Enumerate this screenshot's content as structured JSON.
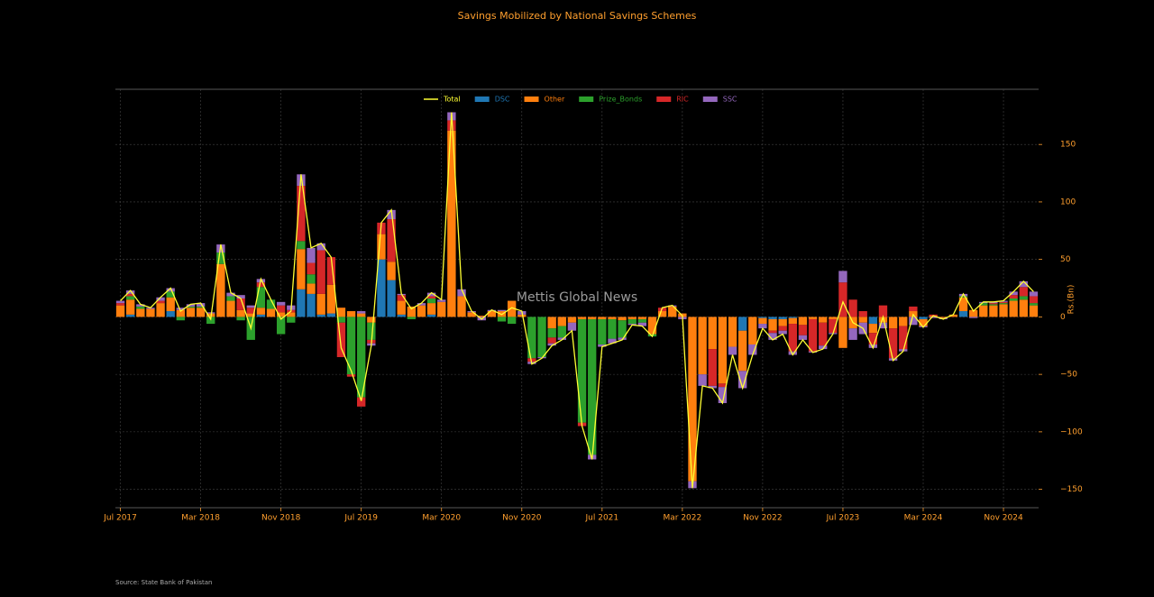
{
  "chart_data": {
    "type": "bar",
    "stacked": true,
    "title": "Savings Mobilized by National Savings Schemes",
    "y_label": "Rs.(Bn)",
    "watermark": "Mettis Global News",
    "source": "Source: State Bank of Pakistan",
    "categories": [
      "Jul 2017",
      null,
      null,
      null,
      null,
      null,
      null,
      null,
      "Mar 2018",
      null,
      null,
      null,
      null,
      null,
      null,
      null,
      "Nov 2018",
      null,
      null,
      null,
      null,
      null,
      null,
      null,
      "Jul 2019",
      null,
      null,
      null,
      null,
      null,
      null,
      null,
      "Mar 2020",
      null,
      null,
      null,
      null,
      null,
      null,
      null,
      "Nov 2020",
      null,
      null,
      null,
      null,
      null,
      null,
      null,
      "Jul 2021",
      null,
      null,
      null,
      null,
      null,
      null,
      null,
      "Mar 2022",
      null,
      null,
      null,
      null,
      null,
      null,
      null,
      "Nov 2022",
      null,
      null,
      null,
      null,
      null,
      null,
      null,
      "Jul 2023",
      null,
      null,
      null,
      null,
      null,
      null,
      null,
      "Mar 2024",
      null,
      null,
      null,
      null,
      null,
      null,
      null,
      "Nov 2024",
      null,
      null,
      null
    ],
    "series": [
      {
        "name": "Total",
        "type": "line",
        "color": "#ffff33",
        "values": [
          14,
          23,
          11,
          8,
          17,
          25,
          5,
          11,
          12,
          -2,
          63,
          21,
          16,
          -10,
          33,
          15,
          -2,
          5,
          124,
          60,
          64,
          52,
          -27,
          -47,
          -73,
          -25,
          82,
          93,
          20,
          7,
          12,
          21,
          15,
          178,
          24,
          5,
          -2,
          6,
          2,
          8,
          5,
          -41,
          -36,
          -25,
          -20,
          -12,
          -95,
          -124,
          -26,
          -23,
          -20,
          -7,
          -8,
          -17,
          8,
          10,
          1,
          -149,
          -60,
          -62,
          -75,
          -33,
          -62,
          -33,
          -10,
          -20,
          -15,
          -33,
          -20,
          -31,
          -28,
          -15,
          13,
          -5,
          -10,
          -27,
          0,
          -38,
          -30,
          2,
          -9,
          1,
          -2,
          2,
          20,
          5,
          13,
          13,
          14,
          22,
          31,
          22
        ]
      },
      {
        "name": "DSC",
        "color": "#1f77b4",
        "values": [
          0,
          2,
          0,
          0,
          0,
          5,
          0,
          0,
          0,
          0,
          0,
          0,
          0,
          0,
          2,
          0,
          0,
          0,
          24,
          20,
          2,
          3,
          0,
          0,
          0,
          0,
          50,
          32,
          2,
          0,
          0,
          2,
          0,
          0,
          0,
          0,
          0,
          0,
          0,
          0,
          0,
          0,
          0,
          0,
          0,
          0,
          0,
          0,
          0,
          0,
          0,
          0,
          0,
          0,
          0,
          0,
          0,
          0,
          0,
          0,
          0,
          0,
          -12,
          0,
          -1,
          -2,
          -2,
          -1,
          0,
          0,
          0,
          0,
          0,
          0,
          0,
          -6,
          0,
          0,
          0,
          0,
          -2,
          0,
          0,
          0,
          5,
          0,
          0,
          0,
          0,
          0,
          0,
          0
        ]
      },
      {
        "name": "Other",
        "color": "#ff7f0e",
        "values": [
          10,
          13,
          7,
          7,
          12,
          12,
          6,
          8,
          8,
          3,
          46,
          14,
          6,
          3,
          6,
          7,
          4,
          4,
          35,
          9,
          18,
          25,
          8,
          5,
          3,
          -5,
          22,
          16,
          12,
          9,
          10,
          10,
          13,
          162,
          18,
          4,
          1,
          5,
          5,
          14,
          2,
          0,
          0,
          -10,
          -8,
          -5,
          -2,
          -2,
          -2,
          -2,
          -3,
          -2,
          -2,
          -15,
          5,
          9,
          3,
          -143,
          -50,
          -28,
          -58,
          -26,
          -35,
          -24,
          -5,
          -10,
          -6,
          -5,
          -7,
          -2,
          -5,
          -2,
          -27,
          -10,
          -5,
          -8,
          -5,
          -10,
          -8,
          5,
          -6,
          1,
          -1,
          2,
          12,
          6,
          10,
          10,
          11,
          14,
          15,
          10
        ]
      },
      {
        "name": "Prize_Bonds",
        "color": "#2ca02c",
        "values": [
          0,
          3,
          2,
          0,
          0,
          5,
          -3,
          1,
          1,
          -6,
          10,
          4,
          -3,
          -20,
          18,
          8,
          -15,
          -5,
          7,
          8,
          0,
          0,
          -5,
          -50,
          -70,
          -15,
          0,
          0,
          0,
          -2,
          0,
          4,
          0,
          0,
          0,
          0,
          0,
          0,
          -4,
          -6,
          0,
          -36,
          -35,
          -8,
          -10,
          0,
          -90,
          -118,
          -22,
          -17,
          -15,
          -4,
          -3,
          -2,
          0,
          0,
          0,
          0,
          0,
          0,
          0,
          0,
          0,
          0,
          0,
          0,
          0,
          0,
          0,
          0,
          0,
          0,
          0,
          0,
          0,
          0,
          0,
          0,
          0,
          0,
          0,
          0,
          0,
          0,
          1,
          0,
          2,
          1,
          1,
          2,
          3,
          2
        ]
      },
      {
        "name": "RIC",
        "color": "#d62728",
        "values": [
          2,
          2,
          0,
          0,
          2,
          0,
          0,
          0,
          0,
          0,
          0,
          0,
          10,
          5,
          4,
          0,
          6,
          2,
          48,
          10,
          38,
          24,
          -30,
          -2,
          -8,
          -3,
          10,
          37,
          5,
          0,
          0,
          2,
          0,
          9,
          0,
          0,
          0,
          0,
          0,
          0,
          0,
          -3,
          0,
          -5,
          0,
          0,
          -3,
          0,
          0,
          0,
          0,
          0,
          0,
          0,
          3,
          0,
          0,
          0,
          0,
          -32,
          -3,
          0,
          0,
          0,
          0,
          -2,
          -4,
          -24,
          -9,
          -28,
          -20,
          -12,
          30,
          15,
          5,
          -10,
          10,
          -26,
          -20,
          4,
          0,
          1,
          0,
          0,
          0,
          0,
          0,
          1,
          1,
          3,
          8,
          6
        ]
      },
      {
        "name": "SSC",
        "color": "#9467bd",
        "values": [
          2,
          3,
          2,
          1,
          3,
          3,
          2,
          2,
          3,
          1,
          7,
          3,
          3,
          2,
          3,
          0,
          3,
          4,
          10,
          13,
          6,
          0,
          0,
          0,
          2,
          -2,
          0,
          8,
          1,
          0,
          2,
          3,
          2,
          7,
          6,
          1,
          -3,
          1,
          1,
          0,
          3,
          -2,
          -1,
          -2,
          -2,
          -7,
          0,
          -4,
          -2,
          -4,
          -2,
          -1,
          -3,
          0,
          0,
          1,
          -2,
          -6,
          -10,
          -2,
          -14,
          -7,
          -15,
          -9,
          -4,
          -6,
          -3,
          -3,
          -4,
          -1,
          -3,
          -1,
          10,
          -10,
          -10,
          -3,
          -5,
          -2,
          -2,
          -7,
          -1,
          -1,
          -1,
          0,
          2,
          -1,
          1,
          1,
          1,
          3,
          5,
          4
        ]
      }
    ],
    "ylim": [
      -166,
      198
    ],
    "yticks": [
      {
        "value": -150,
        "label": "−150"
      },
      {
        "value": -100,
        "label": "−100"
      },
      {
        "value": -50,
        "label": "−50"
      },
      0,
      50,
      100,
      150
    ],
    "grid": true,
    "legend": "top"
  }
}
